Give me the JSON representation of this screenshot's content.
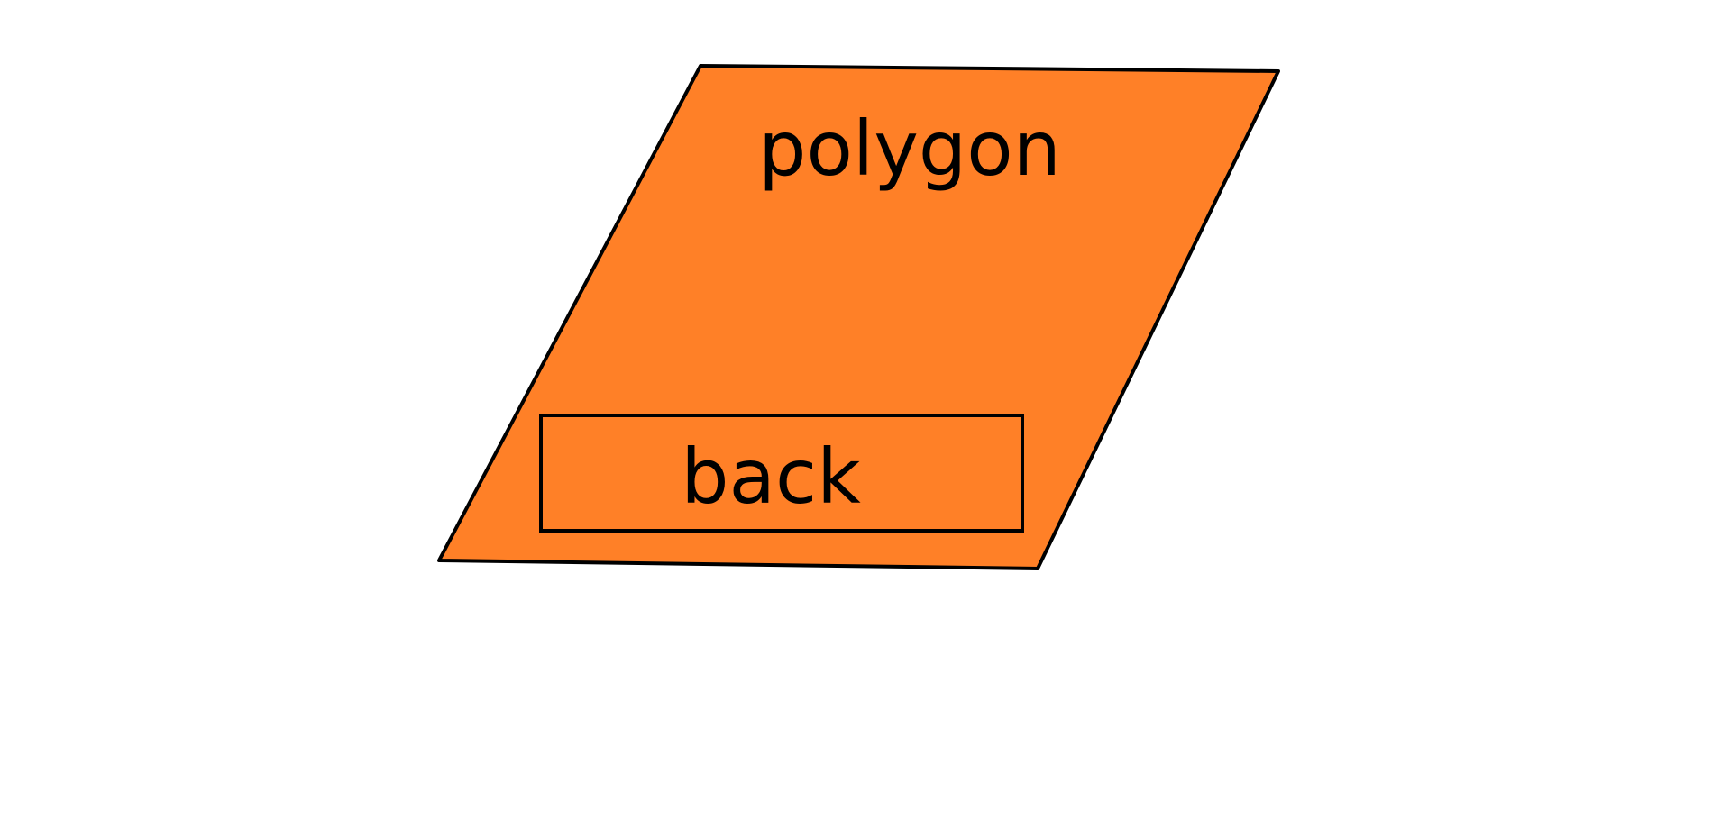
{
  "polygon": {
    "label": "polygon",
    "fill": "#FF8027",
    "stroke": "#000000"
  },
  "back_button": {
    "label": "back",
    "fill": "#FF8027",
    "stroke": "#000000"
  },
  "background": "#FFFFFF"
}
